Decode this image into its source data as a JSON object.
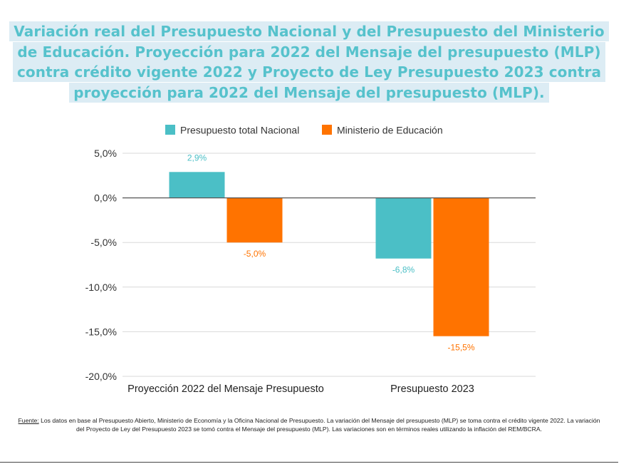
{
  "title": "Variación real del Presupuesto Nacional y del Presupuesto del Ministerio de Educación. Proyección para 2022 del Mensaje del presupuesto (MLP) contra crédito vigente 2022 y Proyecto de Ley Presupuesto 2023 contra proyección para 2022 del Mensaje del presupuesto (MLP).",
  "footnote": {
    "lead": "Fuente:",
    "text": " Los datos en base al Presupuesto Abierto, Ministerio de Economía y la Oficina Nacional de Presupuesto. La variación del Mensaje del presupuesto (MLP) se toma contra el crédito vigente 2022. La variación del Proyecto de Ley del Presupuesto 2023 se tomó contra el Mensaje del presupuesto (MLP). Las variaciones son en términos reales utilizando la inflación del REM/BCRA."
  },
  "chart_data": {
    "type": "bar",
    "title": "",
    "xlabel": "",
    "ylabel": "",
    "categories": [
      "Proyección 2022 del Mensaje Presupuesto",
      "Presupuesto 2023"
    ],
    "series": [
      {
        "name": "Presupuesto total Nacional",
        "values": [
          2.9,
          -6.8
        ],
        "labels": [
          "2,9%",
          "-6,8%"
        ],
        "color": "#4bbfc6"
      },
      {
        "name": "Ministerio de Educación",
        "values": [
          -5.0,
          -15.5
        ],
        "labels": [
          "-5,0%",
          "-15,5%"
        ],
        "color": "#ff7300"
      }
    ],
    "ylim": [
      -20,
      5
    ],
    "yticks": [
      5,
      0,
      -5,
      -10,
      -15,
      -20
    ],
    "ytick_labels": [
      "5,0%",
      "0,0%",
      "-5,0%",
      "-10,0%",
      "-15,0%",
      "-20,0%"
    ],
    "grid": true,
    "legend_position": "top"
  }
}
